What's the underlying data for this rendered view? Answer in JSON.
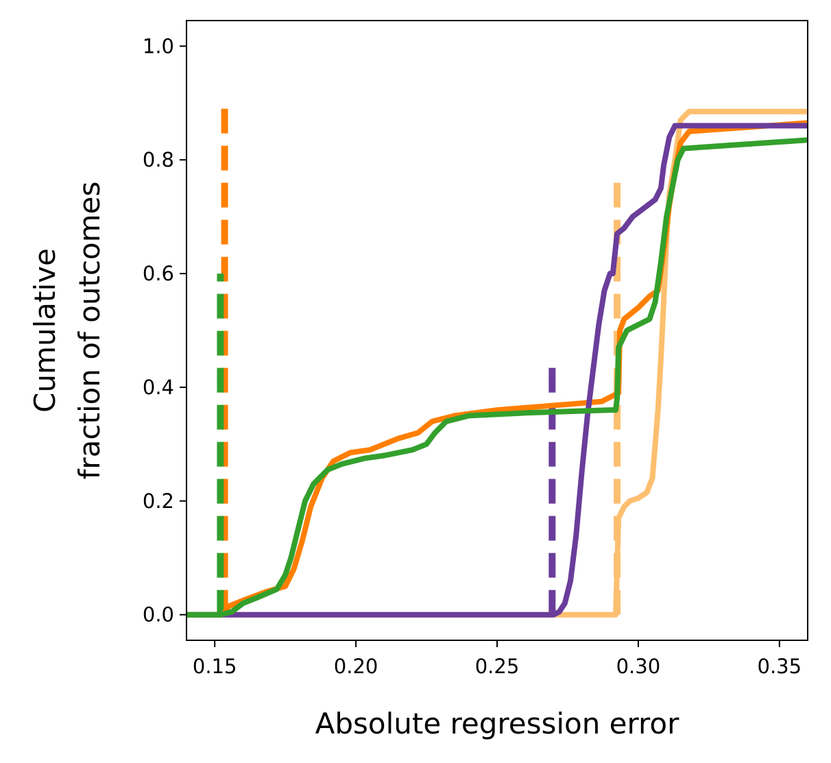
{
  "chart_data": {
    "type": "line",
    "title": "",
    "xlabel": "Absolute regression error",
    "ylabel_lines": [
      "Cumulative",
      "fraction of outcomes"
    ],
    "xlim": [
      0.14,
      0.36
    ],
    "ylim": [
      -0.045,
      1.045
    ],
    "xticks": [
      0.15,
      0.2,
      0.25,
      0.3,
      0.35
    ],
    "xtick_labels": [
      "0.15",
      "0.20",
      "0.25",
      "0.30",
      "0.35"
    ],
    "yticks": [
      0.0,
      0.2,
      0.4,
      0.6,
      0.8,
      1.0
    ],
    "ytick_labels": [
      "0.0",
      "0.2",
      "0.4",
      "0.6",
      "0.8",
      "1.0"
    ],
    "grid": false,
    "legend": "none",
    "series": [
      {
        "color": "#fdbf6f",
        "points": [
          [
            0.14,
            0.0
          ],
          [
            0.268,
            0.0
          ],
          [
            0.292,
            0.0
          ],
          [
            0.2925,
            0.08
          ],
          [
            0.293,
            0.17
          ],
          [
            0.295,
            0.19
          ],
          [
            0.297,
            0.2
          ],
          [
            0.3,
            0.205
          ],
          [
            0.303,
            0.215
          ],
          [
            0.305,
            0.24
          ],
          [
            0.306,
            0.3
          ],
          [
            0.307,
            0.36
          ],
          [
            0.308,
            0.45
          ],
          [
            0.309,
            0.55
          ],
          [
            0.31,
            0.66
          ],
          [
            0.311,
            0.74
          ],
          [
            0.313,
            0.8
          ],
          [
            0.315,
            0.87
          ],
          [
            0.318,
            0.885
          ],
          [
            0.36,
            0.885
          ]
        ]
      },
      {
        "color": "#ff7f00",
        "points": [
          [
            0.14,
            0.0
          ],
          [
            0.153,
            0.0
          ],
          [
            0.155,
            0.015
          ],
          [
            0.16,
            0.025
          ],
          [
            0.168,
            0.04
          ],
          [
            0.175,
            0.05
          ],
          [
            0.178,
            0.08
          ],
          [
            0.181,
            0.13
          ],
          [
            0.184,
            0.19
          ],
          [
            0.188,
            0.24
          ],
          [
            0.192,
            0.27
          ],
          [
            0.198,
            0.285
          ],
          [
            0.205,
            0.29
          ],
          [
            0.215,
            0.31
          ],
          [
            0.222,
            0.32
          ],
          [
            0.227,
            0.34
          ],
          [
            0.235,
            0.35
          ],
          [
            0.25,
            0.36
          ],
          [
            0.275,
            0.37
          ],
          [
            0.287,
            0.375
          ],
          [
            0.293,
            0.39
          ],
          [
            0.2935,
            0.5
          ],
          [
            0.295,
            0.52
          ],
          [
            0.3,
            0.54
          ],
          [
            0.304,
            0.56
          ],
          [
            0.307,
            0.57
          ],
          [
            0.309,
            0.64
          ],
          [
            0.311,
            0.72
          ],
          [
            0.313,
            0.78
          ],
          [
            0.315,
            0.83
          ],
          [
            0.318,
            0.85
          ],
          [
            0.36,
            0.865
          ]
        ]
      },
      {
        "color": "#6a3d9a",
        "points": [
          [
            0.14,
            0.0
          ],
          [
            0.27,
            0.0
          ],
          [
            0.272,
            0.005
          ],
          [
            0.274,
            0.02
          ],
          [
            0.276,
            0.06
          ],
          [
            0.278,
            0.14
          ],
          [
            0.28,
            0.25
          ],
          [
            0.282,
            0.35
          ],
          [
            0.284,
            0.43
          ],
          [
            0.286,
            0.51
          ],
          [
            0.288,
            0.57
          ],
          [
            0.29,
            0.6
          ],
          [
            0.291,
            0.6
          ],
          [
            0.2925,
            0.67
          ],
          [
            0.295,
            0.68
          ],
          [
            0.298,
            0.7
          ],
          [
            0.302,
            0.715
          ],
          [
            0.306,
            0.73
          ],
          [
            0.308,
            0.75
          ],
          [
            0.309,
            0.79
          ],
          [
            0.311,
            0.84
          ],
          [
            0.313,
            0.86
          ],
          [
            0.36,
            0.86
          ]
        ]
      },
      {
        "color": "#33a02c",
        "points": [
          [
            0.14,
            0.0
          ],
          [
            0.152,
            0.0
          ],
          [
            0.156,
            0.005
          ],
          [
            0.16,
            0.02
          ],
          [
            0.165,
            0.03
          ],
          [
            0.172,
            0.045
          ],
          [
            0.175,
            0.07
          ],
          [
            0.177,
            0.1
          ],
          [
            0.179,
            0.14
          ],
          [
            0.182,
            0.2
          ],
          [
            0.185,
            0.23
          ],
          [
            0.19,
            0.255
          ],
          [
            0.195,
            0.265
          ],
          [
            0.203,
            0.275
          ],
          [
            0.21,
            0.28
          ],
          [
            0.22,
            0.29
          ],
          [
            0.225,
            0.3
          ],
          [
            0.228,
            0.32
          ],
          [
            0.232,
            0.34
          ],
          [
            0.24,
            0.35
          ],
          [
            0.26,
            0.355
          ],
          [
            0.29,
            0.36
          ],
          [
            0.292,
            0.36
          ],
          [
            0.2925,
            0.38
          ],
          [
            0.293,
            0.47
          ],
          [
            0.296,
            0.5
          ],
          [
            0.3,
            0.51
          ],
          [
            0.304,
            0.52
          ],
          [
            0.306,
            0.55
          ],
          [
            0.308,
            0.62
          ],
          [
            0.31,
            0.7
          ],
          [
            0.312,
            0.75
          ],
          [
            0.314,
            0.8
          ],
          [
            0.316,
            0.82
          ],
          [
            0.36,
            0.835
          ]
        ]
      }
    ],
    "vlines": [
      {
        "color": "#ff7f00",
        "x": 0.1535,
        "y0": 0.0,
        "y1": 0.9
      },
      {
        "color": "#33a02c",
        "x": 0.152,
        "y0": 0.0,
        "y1": 0.6
      },
      {
        "color": "#6a3d9a",
        "x": 0.2695,
        "y0": 0.0,
        "y1": 0.45
      },
      {
        "color": "#fdbf6f",
        "x": 0.2925,
        "y0": 0.0,
        "y1": 0.78
      }
    ]
  }
}
